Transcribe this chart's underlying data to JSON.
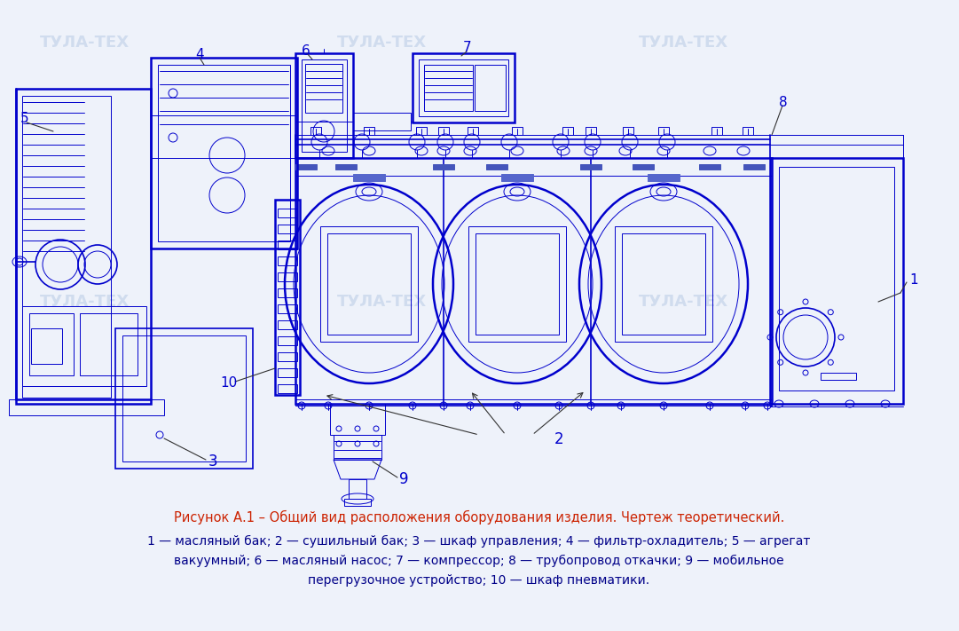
{
  "bg_color": "#eef2fa",
  "drawing_color": "#0000cc",
  "dc_light": "#3333dd",
  "text_color_caption": "#cc2200",
  "text_color_numbers": "#0000cc",
  "text_color_body": "#000088",
  "watermark_color": "#d0dcee",
  "caption_line1": "Рисунок А.1 – Общий вид расположения оборудования изделия. Чертеж теоретический.",
  "caption_line2": "1 — масляный бак; 2 — сушильный бак; 3 — шкаф управления; 4 — фильтр-охладитель; 5 — агрегат",
  "caption_line3": "вакуумный; 6 — масляный насос; 7 — компрессор; 8 — трубопровод откачки; 9 — мобильное",
  "caption_line4": "перегрузочное устройство; 10 — шкаф пневматики."
}
